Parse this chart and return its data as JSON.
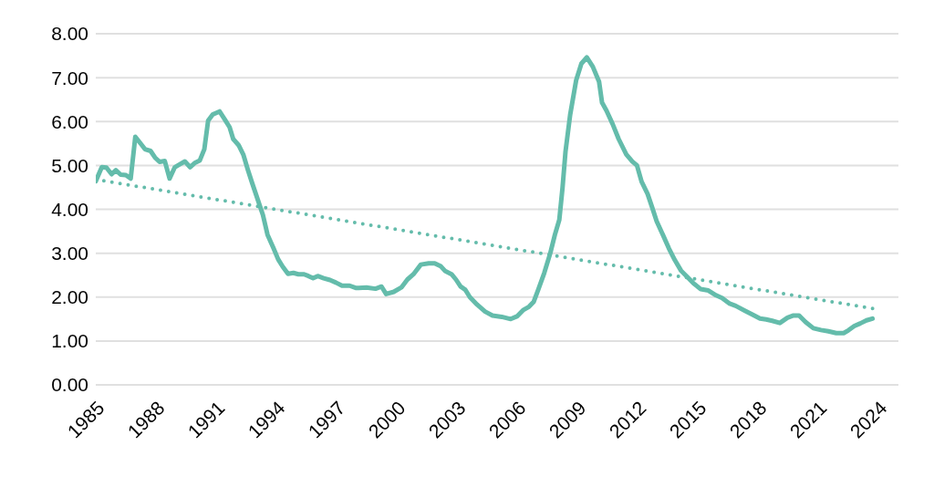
{
  "chart_data": {
    "type": "line",
    "xlim": [
      1985,
      2025
    ],
    "xticks": [
      1985,
      1988,
      1991,
      1994,
      1997,
      2000,
      2003,
      2006,
      2009,
      2012,
      2015,
      2018,
      2021,
      2024
    ],
    "ylim": [
      0,
      8
    ],
    "yticks": [
      {
        "value": 0,
        "label": "0.00"
      },
      {
        "value": 1,
        "label": "1.00"
      },
      {
        "value": 2,
        "label": "2.00"
      },
      {
        "value": 3,
        "label": "3.00"
      },
      {
        "value": 4,
        "label": "4.00"
      },
      {
        "value": 5,
        "label": "5.00"
      },
      {
        "value": 6,
        "label": "6.00"
      },
      {
        "value": 7,
        "label": "7.00"
      },
      {
        "value": 8,
        "label": "8.00"
      }
    ],
    "grid": "y",
    "marker": "none",
    "series": [
      {
        "color": "#64bcab",
        "line_style": "solid",
        "x": [
          1985.0,
          1985.3,
          1985.53,
          1985.79,
          1986.0,
          1986.24,
          1986.5,
          1986.74,
          1986.97,
          1987.23,
          1987.45,
          1987.73,
          1987.95,
          1988.18,
          1988.44,
          1988.68,
          1988.94,
          1989.17,
          1989.44,
          1989.7,
          1989.95,
          1990.18,
          1990.41,
          1990.6,
          1990.83,
          1991.17,
          1991.44,
          1991.67,
          1991.85,
          1992.12,
          1992.35,
          1992.58,
          1992.8,
          1993.08,
          1993.33,
          1993.56,
          1993.86,
          1994.09,
          1994.32,
          1994.58,
          1994.85,
          1995.1,
          1995.38,
          1995.6,
          1995.83,
          1996.06,
          1996.36,
          1996.67,
          1996.97,
          1997.27,
          1997.65,
          1997.95,
          1998.1,
          1998.49,
          1998.94,
          1999.24,
          1999.47,
          1999.85,
          2000.23,
          2000.53,
          2000.83,
          2001.2,
          2001.59,
          2001.89,
          2002.2,
          2002.42,
          2002.73,
          2002.95,
          2003.18,
          2003.41,
          2003.64,
          2004.0,
          2004.4,
          2004.77,
          2005.23,
          2005.68,
          2005.99,
          2006.29,
          2006.59,
          2006.82,
          2007.05,
          2007.35,
          2007.65,
          2007.88,
          2008.1,
          2008.26,
          2008.41,
          2008.64,
          2008.94,
          2009.2,
          2009.47,
          2009.77,
          2010.08,
          2010.23,
          2010.45,
          2010.76,
          2011.06,
          2011.44,
          2011.74,
          2011.97,
          2012.2,
          2012.5,
          2012.73,
          2012.95,
          2013.26,
          2013.56,
          2013.86,
          2014.17,
          2014.47,
          2014.77,
          2015.15,
          2015.53,
          2015.91,
          2016.21,
          2016.59,
          2016.89,
          2017.35,
          2017.73,
          2018.1,
          2018.41,
          2018.71,
          2019.09,
          2019.47,
          2019.77,
          2020.05,
          2020.38,
          2020.76,
          2021.14,
          2021.51,
          2021.9,
          2022.27,
          2022.5,
          2022.8,
          2023.1,
          2023.41,
          2023.71
        ],
        "values": [
          4.64,
          4.96,
          4.95,
          4.8,
          4.89,
          4.79,
          4.78,
          4.7,
          5.65,
          5.5,
          5.37,
          5.33,
          5.18,
          5.08,
          5.1,
          4.7,
          4.96,
          5.02,
          5.09,
          4.96,
          5.06,
          5.11,
          5.37,
          6.02,
          6.16,
          6.23,
          6.04,
          5.87,
          5.6,
          5.46,
          5.25,
          4.9,
          4.59,
          4.21,
          3.87,
          3.42,
          3.11,
          2.86,
          2.69,
          2.53,
          2.55,
          2.52,
          2.52,
          2.48,
          2.43,
          2.48,
          2.43,
          2.39,
          2.33,
          2.26,
          2.26,
          2.21,
          2.21,
          2.22,
          2.19,
          2.24,
          2.07,
          2.12,
          2.22,
          2.4,
          2.52,
          2.74,
          2.77,
          2.77,
          2.7,
          2.59,
          2.52,
          2.4,
          2.24,
          2.17,
          2.0,
          1.83,
          1.67,
          1.58,
          1.55,
          1.5,
          1.56,
          1.7,
          1.78,
          1.89,
          2.17,
          2.55,
          3.0,
          3.42,
          3.76,
          4.49,
          5.32,
          6.15,
          6.94,
          7.32,
          7.46,
          7.25,
          6.91,
          6.43,
          6.25,
          5.94,
          5.6,
          5.25,
          5.09,
          5.0,
          4.63,
          4.35,
          4.04,
          3.73,
          3.42,
          3.11,
          2.84,
          2.6,
          2.46,
          2.32,
          2.18,
          2.15,
          2.04,
          1.98,
          1.85,
          1.8,
          1.69,
          1.6,
          1.51,
          1.49,
          1.46,
          1.41,
          1.53,
          1.58,
          1.58,
          1.43,
          1.29,
          1.25,
          1.22,
          1.18,
          1.18,
          1.24,
          1.34,
          1.4,
          1.47,
          1.51
        ]
      },
      {
        "type": "line",
        "color": "#64bcab",
        "line_style": "dotted",
        "x": [
          1985.0,
          2023.71
        ],
        "values": [
          4.68,
          1.74
        ]
      }
    ]
  }
}
